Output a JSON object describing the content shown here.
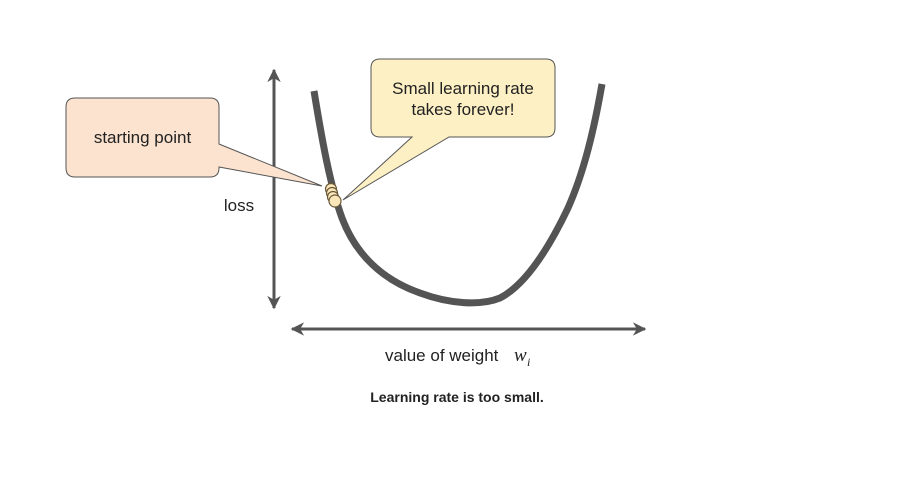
{
  "colors": {
    "axis": "#545454",
    "curve": "#545454",
    "start_bubble_fill": "#fbe3cf",
    "start_bubble_stroke": "#555555",
    "note_bubble_fill": "#fdf0c4",
    "note_bubble_stroke": "#555555",
    "point_fill": "#fbe7b9",
    "point_stroke": "#6a5a3a"
  },
  "start_callout": {
    "text": "starting point"
  },
  "rate_callout": {
    "line1": "Small learning rate",
    "line2": "takes forever!"
  },
  "axes": {
    "y_label": "loss",
    "x_label": "value of weight",
    "x_var": "w",
    "x_var_sub": "i"
  },
  "caption": "Learning rate is too small."
}
